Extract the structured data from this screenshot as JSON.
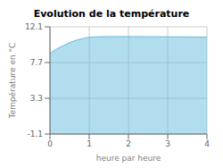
{
  "chart_data": {
    "type": "area",
    "title": "Evolution de la température",
    "xlabel": "heure par heure",
    "ylabel": "Température en °C",
    "x": [
      0,
      0.05,
      0.15,
      0.3,
      0.5,
      0.7,
      0.9,
      1.0,
      1.1,
      1.3,
      1.6,
      2.0,
      2.5,
      3.0,
      3.5,
      4.0
    ],
    "values": [
      8.8,
      9.0,
      9.3,
      9.7,
      10.15,
      10.5,
      10.72,
      10.82,
      10.85,
      10.88,
      10.9,
      10.9,
      10.88,
      10.87,
      10.86,
      10.83
    ],
    "xlim": [
      0,
      4
    ],
    "ylim": [
      -1.1,
      12.1
    ],
    "xticks": [
      0,
      1,
      2,
      3,
      4
    ],
    "yticks": [
      -1.1,
      3.3,
      7.7,
      12.1
    ],
    "grid": true,
    "color": "#66bbdd"
  }
}
